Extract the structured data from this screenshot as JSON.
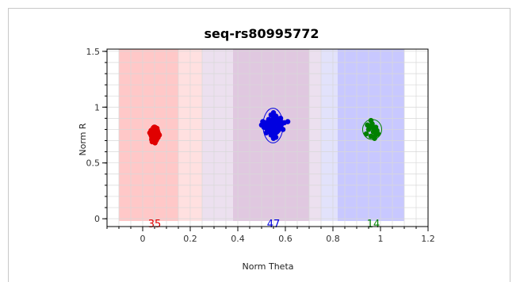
{
  "chart_data": {
    "type": "scatter",
    "title": "seq-rs80995772",
    "xlabel": "Norm Theta",
    "ylabel": "Norm R",
    "xlim": [
      -0.15,
      1.2
    ],
    "ylim": [
      -0.07,
      1.52
    ],
    "xticks": [
      0,
      0.2,
      0.4,
      0.6,
      0.8,
      1,
      1.2
    ],
    "xtick_labels": [
      "0",
      "0.2",
      "0.4",
      "0.6",
      "0.8",
      "1",
      "1.2"
    ],
    "yticks": [
      0,
      0.5,
      1,
      1.5
    ],
    "ytick_labels": [
      "0",
      "0.5",
      "1",
      "1.5"
    ],
    "grid": true,
    "regions": [
      {
        "x0": -0.1,
        "x1": 0.25,
        "color": "#ffe0e0"
      },
      {
        "x0": 0.25,
        "x1": 0.75,
        "color": "#ece0ef"
      },
      {
        "x0": 0.75,
        "x1": 1.1,
        "color": "#e2e2fb"
      },
      {
        "x0": -0.1,
        "x1": 0.15,
        "color": "#ffc8c8"
      },
      {
        "x0": 0.38,
        "x1": 0.7,
        "color": "#e0c8e0"
      },
      {
        "x0": 0.82,
        "x1": 1.1,
        "color": "#c8c8ff"
      }
    ],
    "clusters": [
      {
        "count_label": "35",
        "color": "#e00000",
        "label_x": 0.05,
        "ellipse": {
          "cx": 0.05,
          "cy": 0.755,
          "rx": 0.022,
          "ry": 0.085
        },
        "points": [
          [
            0.04,
            0.72
          ],
          [
            0.05,
            0.74
          ],
          [
            0.06,
            0.76
          ],
          [
            0.045,
            0.78
          ],
          [
            0.055,
            0.7
          ],
          [
            0.035,
            0.75
          ],
          [
            0.065,
            0.73
          ],
          [
            0.05,
            0.8
          ],
          [
            0.04,
            0.69
          ],
          [
            0.06,
            0.81
          ],
          [
            0.03,
            0.77
          ],
          [
            0.07,
            0.75
          ],
          [
            0.045,
            0.72
          ],
          [
            0.055,
            0.78
          ],
          [
            0.05,
            0.76
          ],
          [
            0.04,
            0.74
          ],
          [
            0.06,
            0.72
          ],
          [
            0.035,
            0.79
          ],
          [
            0.065,
            0.77
          ],
          [
            0.05,
            0.71
          ],
          [
            0.045,
            0.75
          ],
          [
            0.055,
            0.74
          ],
          [
            0.04,
            0.77
          ],
          [
            0.06,
            0.75
          ],
          [
            0.05,
            0.73
          ],
          [
            0.038,
            0.71
          ],
          [
            0.062,
            0.79
          ],
          [
            0.048,
            0.82
          ],
          [
            0.052,
            0.68
          ],
          [
            0.042,
            0.76
          ],
          [
            0.058,
            0.73
          ],
          [
            0.05,
            0.75
          ],
          [
            0.044,
            0.78
          ],
          [
            0.056,
            0.71
          ],
          [
            0.05,
            0.77
          ]
        ]
      },
      {
        "count_label": "47",
        "color": "#0000e0",
        "label_x": 0.55,
        "ellipse": {
          "cx": 0.548,
          "cy": 0.835,
          "rx": 0.042,
          "ry": 0.155
        },
        "points": [
          [
            0.53,
            0.78
          ],
          [
            0.54,
            0.82
          ],
          [
            0.55,
            0.85
          ],
          [
            0.56,
            0.8
          ],
          [
            0.57,
            0.88
          ],
          [
            0.52,
            0.86
          ],
          [
            0.58,
            0.83
          ],
          [
            0.55,
            0.91
          ],
          [
            0.54,
            0.75
          ],
          [
            0.56,
            0.77
          ],
          [
            0.53,
            0.89
          ],
          [
            0.57,
            0.79
          ],
          [
            0.55,
            0.83
          ],
          [
            0.52,
            0.81
          ],
          [
            0.58,
            0.87
          ],
          [
            0.54,
            0.93
          ],
          [
            0.56,
            0.73
          ],
          [
            0.55,
            0.95
          ],
          [
            0.53,
            0.84
          ],
          [
            0.57,
            0.84
          ],
          [
            0.545,
            0.86
          ],
          [
            0.555,
            0.81
          ],
          [
            0.535,
            0.79
          ],
          [
            0.565,
            0.9
          ],
          [
            0.55,
            0.87
          ],
          [
            0.54,
            0.8
          ],
          [
            0.56,
            0.86
          ],
          [
            0.55,
            0.78
          ],
          [
            0.525,
            0.83
          ],
          [
            0.575,
            0.82
          ],
          [
            0.515,
            0.86
          ],
          [
            0.585,
            0.85
          ],
          [
            0.51,
            0.82
          ],
          [
            0.59,
            0.8
          ],
          [
            0.505,
            0.87
          ],
          [
            0.595,
            0.86
          ],
          [
            0.61,
            0.87
          ],
          [
            0.5,
            0.84
          ],
          [
            0.55,
            0.72
          ],
          [
            0.54,
            0.88
          ],
          [
            0.56,
            0.92
          ],
          [
            0.545,
            0.76
          ],
          [
            0.555,
            0.89
          ],
          [
            0.535,
            0.85
          ],
          [
            0.565,
            0.78
          ],
          [
            0.52,
            0.77
          ],
          [
            0.58,
            0.9
          ]
        ]
      },
      {
        "count_label": "14",
        "color": "#008000",
        "label_x": 0.97,
        "ellipse": {
          "cx": 0.965,
          "cy": 0.8,
          "rx": 0.04,
          "ry": 0.09
        },
        "points": [
          [
            0.96,
            0.74
          ],
          [
            0.97,
            0.78
          ],
          [
            0.98,
            0.82
          ],
          [
            0.95,
            0.8
          ],
          [
            0.99,
            0.76
          ],
          [
            0.965,
            0.85
          ],
          [
            0.975,
            0.72
          ],
          [
            0.96,
            0.88
          ],
          [
            0.94,
            0.76
          ],
          [
            0.985,
            0.79
          ],
          [
            0.955,
            0.83
          ],
          [
            0.97,
            0.81
          ],
          [
            0.98,
            0.75
          ],
          [
            0.945,
            0.84
          ]
        ]
      }
    ]
  }
}
